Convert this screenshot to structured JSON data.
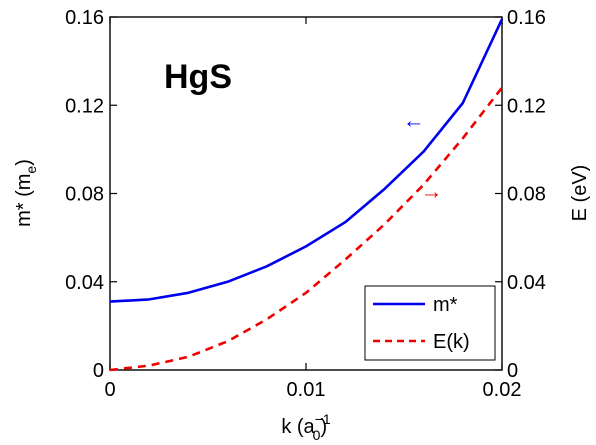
{
  "chart_data": {
    "type": "line",
    "annotation": "HgS",
    "x_range": [
      0,
      0.02
    ],
    "x_ticks": [
      "0",
      "0.01",
      "0.02"
    ],
    "x_label": {
      "main": "k (a",
      "super": "−1",
      "sub": "0",
      "close": ")"
    },
    "y_left": {
      "label_main": "m* (m",
      "label_sub": "e",
      "label_close": ")",
      "range": [
        0,
        0.16
      ],
      "ticks": [
        "0",
        "0.04",
        "0.08",
        "0.12",
        "0.16"
      ]
    },
    "y_right": {
      "label": "E (eV)",
      "range": [
        0,
        0.16
      ],
      "ticks": [
        "0",
        "0.04",
        "0.08",
        "0.12",
        "0.16"
      ]
    },
    "series": [
      {
        "name": "m*",
        "axis": "left",
        "color": "#0000ee",
        "style": "solid",
        "x": [
          0,
          0.002,
          0.004,
          0.006,
          0.008,
          0.01,
          0.012,
          0.014,
          0.016,
          0.018,
          0.02
        ],
        "y": [
          0.031,
          0.032,
          0.035,
          0.04,
          0.047,
          0.056,
          0.067,
          0.082,
          0.099,
          0.121,
          0.159
        ]
      },
      {
        "name": "E(k)",
        "axis": "right",
        "color": "#ee0000",
        "style": "dashed",
        "x": [
          0,
          0.002,
          0.004,
          0.006,
          0.008,
          0.01,
          0.012,
          0.014,
          0.016,
          0.018,
          0.02
        ],
        "y": [
          0,
          0.002,
          0.006,
          0.013,
          0.023,
          0.035,
          0.05,
          0.066,
          0.084,
          0.105,
          0.128
        ]
      }
    ],
    "arrows": [
      {
        "series": "m*",
        "direction": "left",
        "glyph": "←",
        "color": "#0000ee",
        "at": [
          0.0155,
          0.113
        ]
      },
      {
        "series": "E(k)",
        "direction": "right",
        "glyph": "→",
        "color": "#ee0000",
        "at": [
          0.0164,
          0.081
        ]
      }
    ],
    "legend": {
      "position": "bottom-right",
      "entries": [
        {
          "label": "m*",
          "color": "#0000ee",
          "style": "solid"
        },
        {
          "label": "E(k)",
          "color": "#ee0000",
          "style": "dashed"
        }
      ]
    },
    "grid": false
  }
}
